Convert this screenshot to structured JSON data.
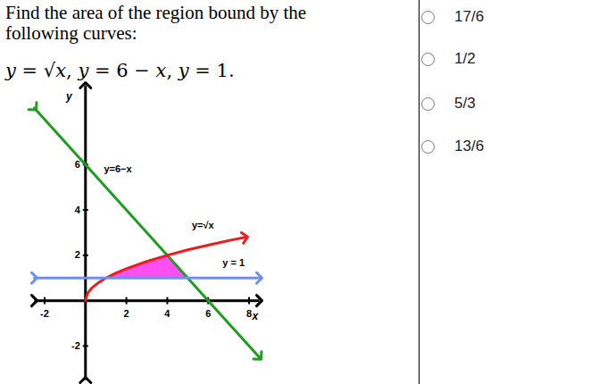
{
  "question": {
    "lines": [
      "Find the area of the region bound by the",
      "following curves:"
    ],
    "formula": "y = √x, y = 6 − x, y = 1."
  },
  "options": [
    "17/6",
    "1/2",
    "5/3",
    "13/6"
  ],
  "chart_data": {
    "type": "line",
    "xlabel": "x",
    "ylabel": "y",
    "xlim": [
      -2.5,
      8.5
    ],
    "ylim": [
      -3.5,
      9.5
    ],
    "xticks": [
      -2,
      2,
      4,
      6,
      8
    ],
    "yticks": [
      6,
      4,
      2,
      -2
    ],
    "series": [
      {
        "name": "y=6−x",
        "color": "#1e9e1e",
        "marker": "arrow",
        "x": [
          -2.5,
          8.5
        ],
        "values": [
          8.5,
          -2.5
        ]
      },
      {
        "name": "y=√x",
        "color": "#ee1c1c",
        "marker": "arrow",
        "x": [
          0,
          0.1,
          0.3,
          0.6,
          1,
          1.5,
          2,
          3,
          4,
          5,
          6,
          7,
          7.8
        ],
        "values": [
          0,
          0.32,
          0.55,
          0.77,
          1,
          1.22,
          1.41,
          1.73,
          2,
          2.24,
          2.45,
          2.65,
          2.79
        ]
      },
      {
        "name": "y = 1",
        "color": "#6f8ff0",
        "marker": "arrow",
        "x": [
          -2.5,
          8.5
        ],
        "values": [
          1,
          1
        ]
      }
    ],
    "shaded_region": {
      "color": "#ff3cef",
      "x": [
        1,
        1.5,
        2,
        3,
        4,
        5
      ],
      "lower": [
        1,
        1,
        1,
        1,
        1,
        1
      ],
      "upper": [
        1,
        1.22,
        1.41,
        1.73,
        2,
        1
      ]
    }
  }
}
